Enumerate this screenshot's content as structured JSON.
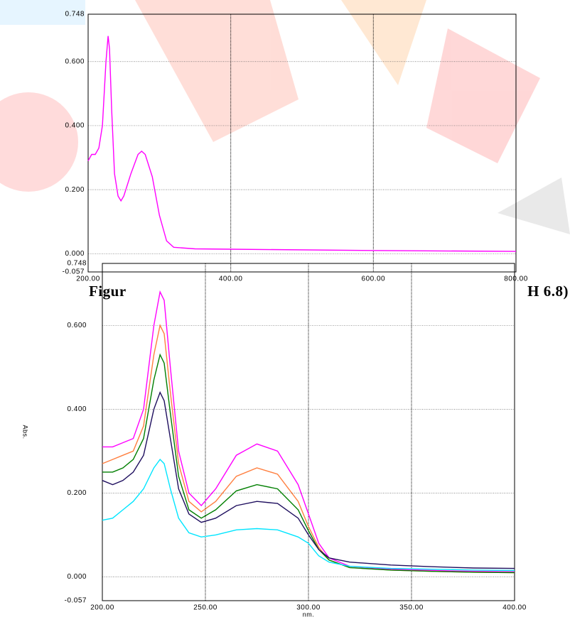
{
  "charts": [
    {
      "chart_data": {
        "type": "line",
        "x": [
          200,
          205,
          210,
          215,
          220,
          225,
          228,
          230,
          233,
          237,
          242,
          246,
          250,
          260,
          270,
          275,
          280,
          290,
          300,
          310,
          320,
          350,
          400,
          600,
          800
        ],
        "series": [
          {
            "color": "#ff00ff",
            "values": [
              0.29,
              0.31,
              0.31,
              0.33,
              0.4,
              0.6,
              0.68,
              0.64,
              0.45,
              0.25,
              0.18,
              0.165,
              0.18,
              0.25,
              0.31,
              0.32,
              0.31,
              0.24,
              0.12,
              0.04,
              0.02,
              0.015,
              0.014,
              0.01,
              0.007
            ]
          }
        ],
        "xlim": [
          200,
          800
        ],
        "xticks": [
          {
            "value": 200,
            "label": "200.00"
          },
          {
            "value": 400,
            "label": "400.00"
          },
          {
            "value": 600,
            "label": "600.00"
          },
          {
            "value": 800,
            "label": "800.00"
          }
        ],
        "ylim": [
          -0.057,
          0.748
        ],
        "yticks": [
          {
            "value": -0.057,
            "label": "-0.057"
          },
          {
            "value": 0,
            "label": "0.000"
          },
          {
            "value": 0.2,
            "label": "0.200"
          },
          {
            "value": 0.4,
            "label": "0.400"
          },
          {
            "value": 0.6,
            "label": "0.600"
          },
          {
            "value": 0.748,
            "label": "0.748"
          }
        ],
        "grid": true
      }
    },
    {
      "chart_data": {
        "type": "line",
        "x": [
          200,
          205,
          210,
          215,
          220,
          225,
          228,
          230,
          233,
          237,
          242,
          248,
          255,
          265,
          275,
          285,
          295,
          300,
          305,
          310,
          320,
          340,
          360,
          380,
          400
        ],
        "series": [
          {
            "color": "#ff00ff",
            "values": [
              0.31,
              0.31,
              0.32,
              0.33,
              0.4,
              0.6,
              0.68,
              0.66,
              0.5,
              0.3,
              0.2,
              0.17,
              0.21,
              0.29,
              0.317,
              0.3,
              0.22,
              0.15,
              0.08,
              0.045,
              0.025,
              0.018,
              0.015,
              0.013,
              0.012
            ]
          },
          {
            "color": "#ff7f3f",
            "values": [
              0.27,
              0.28,
              0.29,
              0.3,
              0.36,
              0.53,
              0.6,
              0.58,
              0.44,
              0.27,
              0.18,
              0.155,
              0.18,
              0.24,
              0.26,
              0.245,
              0.18,
              0.12,
              0.07,
              0.04,
              0.022,
              0.016,
              0.013,
              0.011,
              0.01
            ]
          },
          {
            "color": "#007f00",
            "values": [
              0.25,
              0.25,
              0.26,
              0.28,
              0.33,
              0.47,
              0.53,
              0.51,
              0.39,
              0.24,
              0.16,
              0.14,
              0.16,
              0.205,
              0.22,
              0.21,
              0.16,
              0.11,
              0.065,
              0.04,
              0.022,
              0.016,
              0.013,
              0.011,
              0.01
            ]
          },
          {
            "color": "#1f0f5f",
            "values": [
              0.23,
              0.22,
              0.23,
              0.25,
              0.29,
              0.4,
              0.44,
              0.42,
              0.33,
              0.21,
              0.15,
              0.13,
              0.14,
              0.17,
              0.18,
              0.175,
              0.14,
              0.1,
              0.065,
              0.045,
              0.035,
              0.028,
              0.024,
              0.021,
              0.02
            ]
          },
          {
            "color": "#00e5ff",
            "values": [
              0.135,
              0.14,
              0.16,
              0.18,
              0.21,
              0.26,
              0.28,
              0.27,
              0.21,
              0.14,
              0.105,
              0.095,
              0.1,
              0.112,
              0.115,
              0.112,
              0.095,
              0.08,
              0.05,
              0.035,
              0.025,
              0.02,
              0.018,
              0.016,
              0.015
            ]
          }
        ],
        "x_label": "nm.",
        "y_label": "Abs.",
        "xlim": [
          200,
          400
        ],
        "xticks": [
          {
            "value": 200,
            "label": "200.00"
          },
          {
            "value": 250,
            "label": "250.00"
          },
          {
            "value": 300,
            "label": "300.00"
          },
          {
            "value": 350,
            "label": "350.00"
          },
          {
            "value": 400,
            "label": "400.00"
          }
        ],
        "ylim": [
          -0.057,
          0.748
        ],
        "yticks": [
          {
            "value": -0.057,
            "label": "-0.057"
          },
          {
            "value": 0,
            "label": "0.000"
          },
          {
            "value": 0.2,
            "label": "0.200"
          },
          {
            "value": 0.4,
            "label": "0.400"
          },
          {
            "value": 0.6,
            "label": "0.600"
          },
          {
            "value": 0.748,
            "label": "0.748"
          }
        ],
        "grid": true
      }
    }
  ],
  "caption": {
    "left": "Figur",
    "right": "H 6.8)"
  }
}
